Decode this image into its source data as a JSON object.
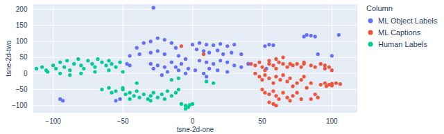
{
  "chart_data": {
    "type": "scatter",
    "xlabel": "tsne-2d-one",
    "ylabel": "tsne-2d-two",
    "legend_title": "Column",
    "legend": "right",
    "grid": true,
    "marker": "circle",
    "xlim": [
      -114,
      118
    ],
    "ylim": [
      -121,
      215
    ],
    "xticks": [
      -100,
      -50,
      0,
      50,
      100
    ],
    "yticks": [
      -100,
      -50,
      0,
      50,
      100,
      150,
      200
    ],
    "series": [
      {
        "name": "ML Object Labels",
        "color": "#636EFA",
        "values": [
          [
            -28,
            205
          ],
          [
            -40,
            80
          ],
          [
            -35,
            95
          ],
          [
            -30,
            100
          ],
          [
            -25,
            110
          ],
          [
            -20,
            105
          ],
          [
            -15,
            95
          ],
          [
            -12,
            80
          ],
          [
            -38,
            60
          ],
          [
            -30,
            65
          ],
          [
            -25,
            70
          ],
          [
            -20,
            60
          ],
          [
            -10,
            55
          ],
          [
            -45,
            55
          ],
          [
            -5,
            45
          ],
          [
            -30,
            30
          ],
          [
            -25,
            25
          ],
          [
            -20,
            20
          ],
          [
            -15,
            35
          ],
          [
            -10,
            10
          ],
          [
            -5,
            0
          ],
          [
            -22,
            -5
          ],
          [
            -18,
            5
          ],
          [
            -12,
            20
          ],
          [
            -8,
            30
          ],
          [
            -3,
            15
          ],
          [
            -28,
            15
          ],
          [
            0,
            90
          ],
          [
            5,
            95
          ],
          [
            10,
            90
          ],
          [
            15,
            88
          ],
          [
            20,
            92
          ],
          [
            25,
            85
          ],
          [
            30,
            90
          ],
          [
            3,
            75
          ],
          [
            8,
            70
          ],
          [
            12,
            65
          ],
          [
            18,
            72
          ],
          [
            22,
            60
          ],
          [
            28,
            65
          ],
          [
            35,
            60
          ],
          [
            5,
            40
          ],
          [
            10,
            35
          ],
          [
            15,
            30
          ],
          [
            20,
            40
          ],
          [
            25,
            35
          ],
          [
            30,
            25
          ],
          [
            35,
            20
          ],
          [
            40,
            30
          ],
          [
            12,
            15
          ],
          [
            18,
            10
          ],
          [
            25,
            5
          ],
          [
            8,
            0
          ],
          [
            2,
            10
          ],
          [
            52,
            85
          ],
          [
            55,
            90
          ],
          [
            58,
            88
          ],
          [
            53,
            15
          ],
          [
            80,
            115
          ],
          [
            82,
            120
          ],
          [
            85,
            118
          ],
          [
            88,
            115
          ],
          [
            105,
            120
          ],
          [
            100,
            55
          ],
          [
            90,
            60
          ],
          [
            -55,
            -85
          ],
          [
            -52,
            -80
          ],
          [
            -95,
            -80
          ],
          [
            -93,
            -85
          ],
          [
            -45,
            25
          ],
          [
            -47,
            30
          ],
          [
            10,
            -10
          ]
        ]
      },
      {
        "name": "ML Captions",
        "color": "#EF553B",
        "values": [
          [
            42,
            30
          ],
          [
            45,
            25
          ],
          [
            48,
            35
          ],
          [
            50,
            20
          ],
          [
            52,
            10
          ],
          [
            55,
            30
          ],
          [
            58,
            25
          ],
          [
            60,
            15
          ],
          [
            62,
            35
          ],
          [
            65,
            30
          ],
          [
            68,
            20
          ],
          [
            70,
            30
          ],
          [
            72,
            25
          ],
          [
            75,
            30
          ],
          [
            78,
            20
          ],
          [
            80,
            30
          ],
          [
            85,
            25
          ],
          [
            88,
            20
          ],
          [
            92,
            30
          ],
          [
            95,
            25
          ],
          [
            98,
            20
          ],
          [
            45,
            0
          ],
          [
            48,
            -10
          ],
          [
            50,
            -20
          ],
          [
            52,
            -5
          ],
          [
            55,
            -15
          ],
          [
            58,
            -30
          ],
          [
            60,
            -10
          ],
          [
            63,
            -20
          ],
          [
            65,
            -5
          ],
          [
            68,
            -25
          ],
          [
            70,
            -15
          ],
          [
            72,
            -40
          ],
          [
            75,
            -30
          ],
          [
            78,
            -20
          ],
          [
            80,
            -10
          ],
          [
            82,
            -45
          ],
          [
            85,
            -30
          ],
          [
            50,
            -50
          ],
          [
            52,
            -60
          ],
          [
            55,
            -65
          ],
          [
            58,
            -55
          ],
          [
            60,
            -70
          ],
          [
            62,
            -80
          ],
          [
            65,
            -60
          ],
          [
            68,
            -75
          ],
          [
            70,
            -85
          ],
          [
            72,
            -70
          ],
          [
            55,
            -90
          ],
          [
            58,
            -95
          ],
          [
            60,
            -100
          ],
          [
            75,
            -60
          ],
          [
            78,
            -80
          ],
          [
            85,
            -80
          ],
          [
            88,
            -65
          ],
          [
            90,
            -75
          ],
          [
            92,
            -35
          ],
          [
            95,
            -30
          ],
          [
            98,
            -35
          ],
          [
            100,
            -32
          ],
          [
            103,
            -30
          ],
          [
            106,
            -33
          ],
          [
            96,
            -40
          ],
          [
            100,
            -38
          ],
          [
            55,
            40
          ],
          [
            60,
            45
          ],
          [
            65,
            50
          ],
          [
            80,
            35
          ],
          [
            95,
            15
          ],
          [
            100,
            10
          ],
          [
            -8,
            85
          ],
          [
            8,
            60
          ]
        ]
      },
      {
        "name": "Human Labels",
        "color": "#00CC96",
        "values": [
          [
            -112,
            15
          ],
          [
            -108,
            20
          ],
          [
            -105,
            10
          ],
          [
            -100,
            25
          ],
          [
            -98,
            15
          ],
          [
            -95,
            35
          ],
          [
            -92,
            20
          ],
          [
            -90,
            40
          ],
          [
            -88,
            10
          ],
          [
            -85,
            30
          ],
          [
            -82,
            45
          ],
          [
            -80,
            25
          ],
          [
            -78,
            15
          ],
          [
            -75,
            40
          ],
          [
            -72,
            30
          ],
          [
            -70,
            20
          ],
          [
            -68,
            45
          ],
          [
            -65,
            35
          ],
          [
            -62,
            25
          ],
          [
            -60,
            40
          ],
          [
            -58,
            30
          ],
          [
            -55,
            20
          ],
          [
            -52,
            35
          ],
          [
            -50,
            5
          ],
          [
            -88,
            -5
          ],
          [
            -80,
            0
          ],
          [
            -95,
            0
          ],
          [
            -70,
            5
          ],
          [
            -60,
            10
          ],
          [
            -104,
            5
          ],
          [
            -65,
            -50
          ],
          [
            -60,
            -45
          ],
          [
            -58,
            -60
          ],
          [
            -55,
            -55
          ],
          [
            -50,
            -50
          ],
          [
            -48,
            -65
          ],
          [
            -45,
            -60
          ],
          [
            -42,
            -70
          ],
          [
            -40,
            -55
          ],
          [
            -38,
            -75
          ],
          [
            -35,
            -65
          ],
          [
            -32,
            -80
          ],
          [
            -30,
            -70
          ],
          [
            -28,
            -60
          ],
          [
            -25,
            -75
          ],
          [
            -22,
            -65
          ],
          [
            -20,
            -80
          ],
          [
            -18,
            -55
          ],
          [
            -15,
            -70
          ],
          [
            -12,
            -60
          ],
          [
            -45,
            -80
          ],
          [
            -30,
            -85
          ],
          [
            -50,
            -45
          ],
          [
            -10,
            -50
          ],
          [
            -8,
            -95
          ],
          [
            -5,
            -100
          ],
          [
            -2,
            -98
          ],
          [
            0,
            -95
          ],
          [
            -5,
            -110
          ],
          [
            -3,
            -105
          ],
          [
            -15,
            -20
          ],
          [
            -10,
            -15
          ],
          [
            -40,
            -30
          ],
          [
            10,
            -25
          ],
          [
            15,
            -30
          ]
        ]
      }
    ]
  }
}
